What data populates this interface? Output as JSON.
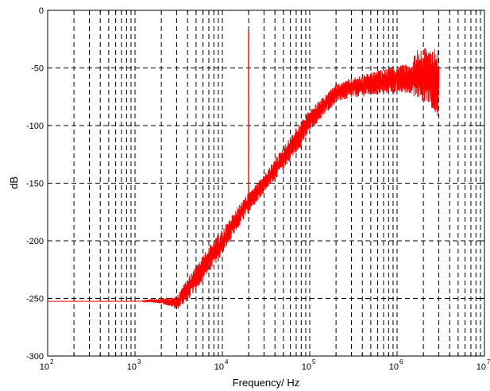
{
  "chart_data": {
    "type": "line",
    "title": "",
    "xlabel": "Frequency/ Hz",
    "ylabel": "dB",
    "xscale": "log",
    "yscale": "linear",
    "xlim": [
      100,
      10000000
    ],
    "ylim": [
      -300,
      0
    ],
    "grid": true,
    "grid_style": "dashed",
    "legend": "none",
    "line_color": "#ff0000",
    "x_ticks": [
      {
        "base": "10",
        "exp": "2",
        "value": 100
      },
      {
        "base": "10",
        "exp": "3",
        "value": 1000
      },
      {
        "base": "10",
        "exp": "4",
        "value": 10000
      },
      {
        "base": "10",
        "exp": "5",
        "value": 100000
      },
      {
        "base": "10",
        "exp": "6",
        "value": 1000000
      },
      {
        "base": "10",
        "exp": "7",
        "value": 10000000
      }
    ],
    "y_ticks": [
      {
        "label": "0",
        "value": 0
      },
      {
        "label": "-50",
        "value": -50
      },
      {
        "label": "-100",
        "value": -100
      },
      {
        "label": "-150",
        "value": -150
      },
      {
        "label": "-200",
        "value": -200
      },
      {
        "label": "-250",
        "value": -250
      },
      {
        "label": "-300",
        "value": -300
      }
    ],
    "series": [
      {
        "spectrum_envelope": [
          {
            "x": 100,
            "low": -253,
            "high": -252
          },
          {
            "x": 1000,
            "low": -253,
            "high": -252
          },
          {
            "x": 1800,
            "low": -254,
            "high": -250
          },
          {
            "x": 2500,
            "low": -257,
            "high": -249
          },
          {
            "x": 3000,
            "low": -260,
            "high": -248
          },
          {
            "x": 4000,
            "low": -252,
            "high": -232
          },
          {
            "x": 5000,
            "low": -242,
            "high": -222
          },
          {
            "x": 7000,
            "low": -228,
            "high": -205
          },
          {
            "x": 10000,
            "low": -212,
            "high": -190
          },
          {
            "x": 15000,
            "low": -190,
            "high": -170
          },
          {
            "x": 20000,
            "low": -175,
            "high": -158
          },
          {
            "x": 30000,
            "low": -158,
            "high": -143
          },
          {
            "x": 50000,
            "low": -138,
            "high": -118
          },
          {
            "x": 80000,
            "low": -118,
            "high": -96
          },
          {
            "x": 100000,
            "low": -105,
            "high": -86
          },
          {
            "x": 150000,
            "low": -90,
            "high": -74
          },
          {
            "x": 200000,
            "low": -80,
            "high": -64
          },
          {
            "x": 300000,
            "low": -76,
            "high": -59
          },
          {
            "x": 500000,
            "low": -74,
            "high": -54
          },
          {
            "x": 800000,
            "low": -72,
            "high": -50
          },
          {
            "x": 1000000,
            "low": -72,
            "high": -48
          },
          {
            "x": 1500000,
            "low": -72,
            "high": -46
          },
          {
            "x": 1600000,
            "low": -77,
            "high": -34
          },
          {
            "x": 2200000,
            "low": -80,
            "high": -32
          },
          {
            "x": 3000000,
            "low": -93,
            "high": -31
          }
        ],
        "spike": {
          "x": 20000,
          "peak": -18,
          "base": -163
        }
      }
    ]
  }
}
